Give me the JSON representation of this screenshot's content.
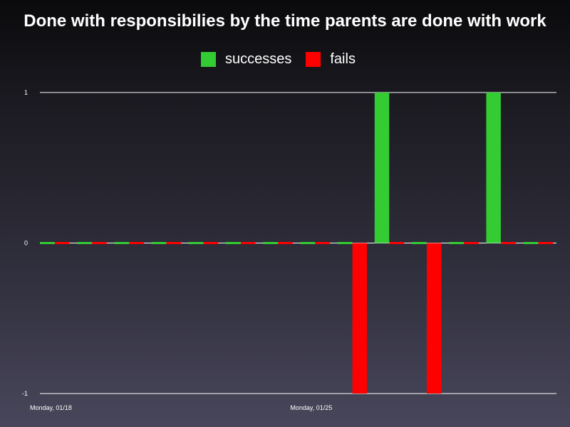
{
  "chart_data": {
    "type": "bar",
    "title": "Done with responsibilies by the time parents are done with work",
    "xlabel": "",
    "ylabel": "",
    "ylim": [
      -1,
      1
    ],
    "y_ticks": [
      "1",
      "0",
      "-1"
    ],
    "y_tick_values": [
      1,
      0,
      -1
    ],
    "x_tick_labels": [
      {
        "label": "Monday, 01/18",
        "slot": 0
      },
      {
        "label": "Monday, 01/25",
        "slot": 7
      }
    ],
    "legend_position": "top-center",
    "grid": true,
    "series": [
      {
        "name": "successes",
        "color": "#33cc33",
        "values": [
          0,
          0,
          0,
          0,
          0,
          0,
          0,
          0,
          0,
          1,
          0,
          0,
          1,
          0
        ]
      },
      {
        "name": "fails",
        "color": "#ff0000",
        "values": [
          0,
          0,
          0,
          0,
          0,
          0,
          0,
          0,
          -1,
          0,
          -1,
          0,
          0,
          0
        ]
      }
    ]
  }
}
